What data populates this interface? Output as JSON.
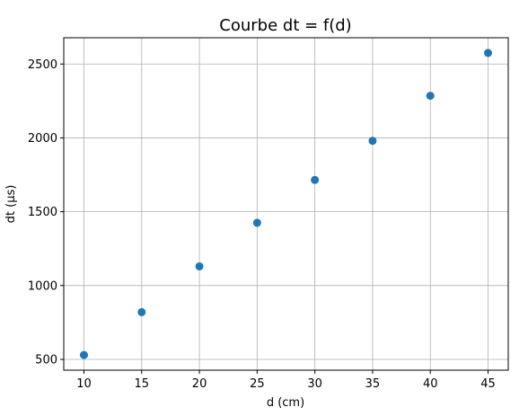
{
  "chart_data": {
    "type": "scatter",
    "title": "Courbe dt = f(d)",
    "xlabel": "d (cm)",
    "ylabel": "dt (µs)",
    "x": [
      10,
      15,
      20,
      25,
      30,
      35,
      40,
      45
    ],
    "y": [
      530,
      820,
      1130,
      1425,
      1715,
      1980,
      2285,
      2575
    ],
    "xlim": [
      8.25,
      46.75
    ],
    "ylim": [
      427,
      2678
    ],
    "xticks": [
      10,
      15,
      20,
      25,
      30,
      35,
      40,
      45
    ],
    "yticks": [
      500,
      1000,
      1500,
      2000,
      2500
    ],
    "xtick_labels": [
      "10",
      "15",
      "20",
      "25",
      "30",
      "35",
      "40",
      "45"
    ],
    "ytick_labels": [
      "500",
      "1000",
      "1500",
      "2000",
      "2500"
    ],
    "grid": true,
    "marker_color": "#1f77b4"
  }
}
